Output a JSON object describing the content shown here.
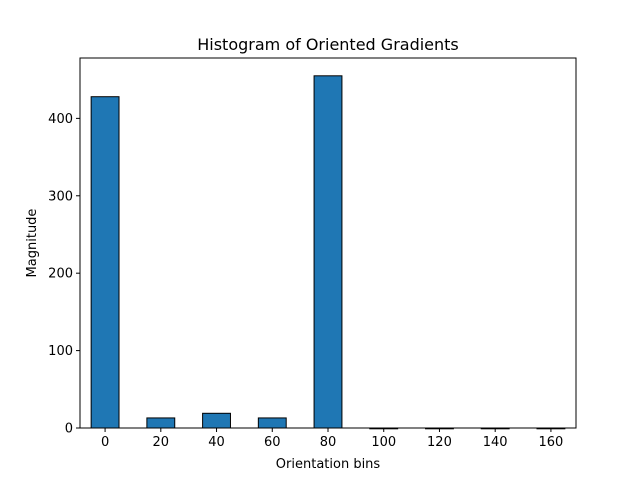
{
  "chart_data": {
    "type": "bar",
    "title": "Histogram of Oriented Gradients",
    "xlabel": "Orientation bins",
    "ylabel": "Magnitude",
    "categories": [
      0,
      20,
      40,
      60,
      80,
      100,
      120,
      140,
      160
    ],
    "values": [
      428,
      13,
      19,
      13,
      455,
      0,
      0,
      0,
      0
    ],
    "bar_width": 10,
    "xlim": [
      -9,
      169
    ],
    "ylim": [
      0,
      478
    ],
    "xticks": [
      0,
      20,
      40,
      60,
      80,
      100,
      120,
      140,
      160
    ],
    "yticks": [
      0,
      100,
      200,
      300,
      400
    ],
    "bar_color": "#1f77b4",
    "edge_color": "#000000",
    "grid": false,
    "legend": "none"
  }
}
